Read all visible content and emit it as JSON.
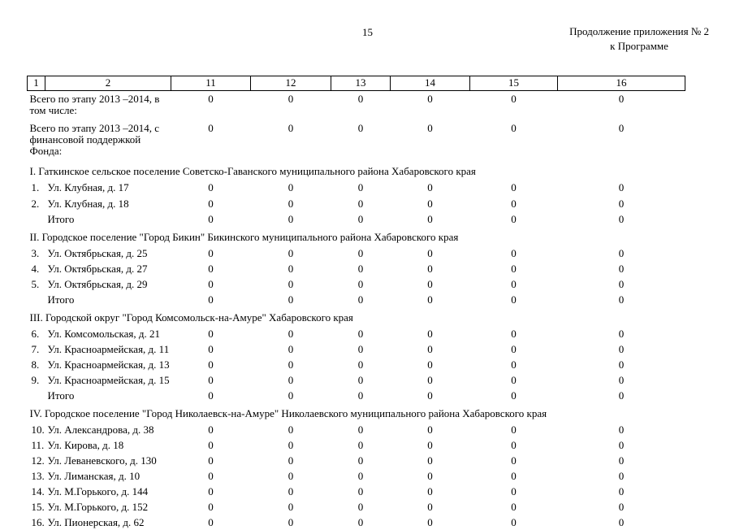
{
  "page": {
    "number": "15",
    "header_right_line1": "Продолжение приложения № 2",
    "header_right_line2": "к Программе"
  },
  "table": {
    "columns": [
      "1",
      "2",
      "11",
      "12",
      "13",
      "14",
      "15",
      "16"
    ],
    "rows": [
      {
        "type": "summary",
        "label": "Всего по этапу 2013 –2014, в том числе:",
        "values": [
          "0",
          "0",
          "0",
          "0",
          "0",
          "0"
        ]
      },
      {
        "type": "summary",
        "label": "Всего по этапу 2013 –2014, с финансовой поддержкой Фонда:",
        "values": [
          "0",
          "0",
          "0",
          "0",
          "0",
          "0"
        ]
      },
      {
        "type": "section",
        "label": "I. Гаткинское сельское поселение Советско-Гаванского муниципального района Хабаровского края"
      },
      {
        "type": "data",
        "num": "1.",
        "label": "Ул. Клубная, д. 17",
        "values": [
          "0",
          "0",
          "0",
          "0",
          "0",
          "0"
        ]
      },
      {
        "type": "data",
        "num": "2.",
        "label": "Ул. Клубная, д. 18",
        "values": [
          "0",
          "0",
          "0",
          "0",
          "0",
          "0"
        ]
      },
      {
        "type": "total",
        "num": "",
        "label": "Итого",
        "values": [
          "0",
          "0",
          "0",
          "0",
          "0",
          "0"
        ]
      },
      {
        "type": "section",
        "label": "II. Городское поселение \"Город Бикин\" Бикинского муниципального района Хабаровского края"
      },
      {
        "type": "data",
        "num": "3.",
        "label": "Ул. Октябрьская, д. 25",
        "values": [
          "0",
          "0",
          "0",
          "0",
          "0",
          "0"
        ]
      },
      {
        "type": "data",
        "num": "4.",
        "label": "Ул. Октябрьская, д. 27",
        "values": [
          "0",
          "0",
          "0",
          "0",
          "0",
          "0"
        ]
      },
      {
        "type": "data",
        "num": "5.",
        "label": "Ул. Октябрьская, д. 29",
        "values": [
          "0",
          "0",
          "0",
          "0",
          "0",
          "0"
        ]
      },
      {
        "type": "total",
        "num": "",
        "label": "Итого",
        "values": [
          "0",
          "0",
          "0",
          "0",
          "0",
          "0"
        ]
      },
      {
        "type": "section",
        "label": "III. Городской округ \"Город Комсомольск-на-Амуре\" Хабаровского края"
      },
      {
        "type": "data",
        "num": "6.",
        "label": "Ул. Комсомольская, д. 21",
        "values": [
          "0",
          "0",
          "0",
          "0",
          "0",
          "0"
        ]
      },
      {
        "type": "data",
        "num": "7.",
        "label": "Ул. Красноармейская, д. 11",
        "values": [
          "0",
          "0",
          "0",
          "0",
          "0",
          "0"
        ]
      },
      {
        "type": "data",
        "num": "8.",
        "label": "Ул. Красноармейская, д. 13",
        "values": [
          "0",
          "0",
          "0",
          "0",
          "0",
          "0"
        ]
      },
      {
        "type": "data",
        "num": "9.",
        "label": "Ул. Красноармейская, д. 15",
        "values": [
          "0",
          "0",
          "0",
          "0",
          "0",
          "0"
        ]
      },
      {
        "type": "total",
        "num": "",
        "label": "Итого",
        "values": [
          "0",
          "0",
          "0",
          "0",
          "0",
          "0"
        ]
      },
      {
        "type": "section",
        "label": "IV. Городское поселение \"Город Николаевск-на-Амуре\" Николаевского муниципального района Хабаровского края"
      },
      {
        "type": "data",
        "num": "10.",
        "label": "Ул. Александрова, д. 38",
        "values": [
          "0",
          "0",
          "0",
          "0",
          "0",
          "0"
        ]
      },
      {
        "type": "data",
        "num": "11.",
        "label": "Ул. Кирова, д. 18",
        "values": [
          "0",
          "0",
          "0",
          "0",
          "0",
          "0"
        ]
      },
      {
        "type": "data",
        "num": "12.",
        "label": "Ул. Леваневского, д. 130",
        "values": [
          "0",
          "0",
          "0",
          "0",
          "0",
          "0"
        ]
      },
      {
        "type": "data",
        "num": "13.",
        "label": "Ул. Лиманская, д. 10",
        "values": [
          "0",
          "0",
          "0",
          "0",
          "0",
          "0"
        ]
      },
      {
        "type": "data",
        "num": "14.",
        "label": "Ул. М.Горького, д. 144",
        "values": [
          "0",
          "0",
          "0",
          "0",
          "0",
          "0"
        ]
      },
      {
        "type": "data",
        "num": "15.",
        "label": "Ул. М.Горького, д. 152",
        "values": [
          "0",
          "0",
          "0",
          "0",
          "0",
          "0"
        ]
      },
      {
        "type": "16",
        "num": "16.",
        "label": "Ул. Пионерская, д. 62",
        "values": [
          "0",
          "0",
          "0",
          "0",
          "0",
          "0"
        ]
      }
    ]
  }
}
